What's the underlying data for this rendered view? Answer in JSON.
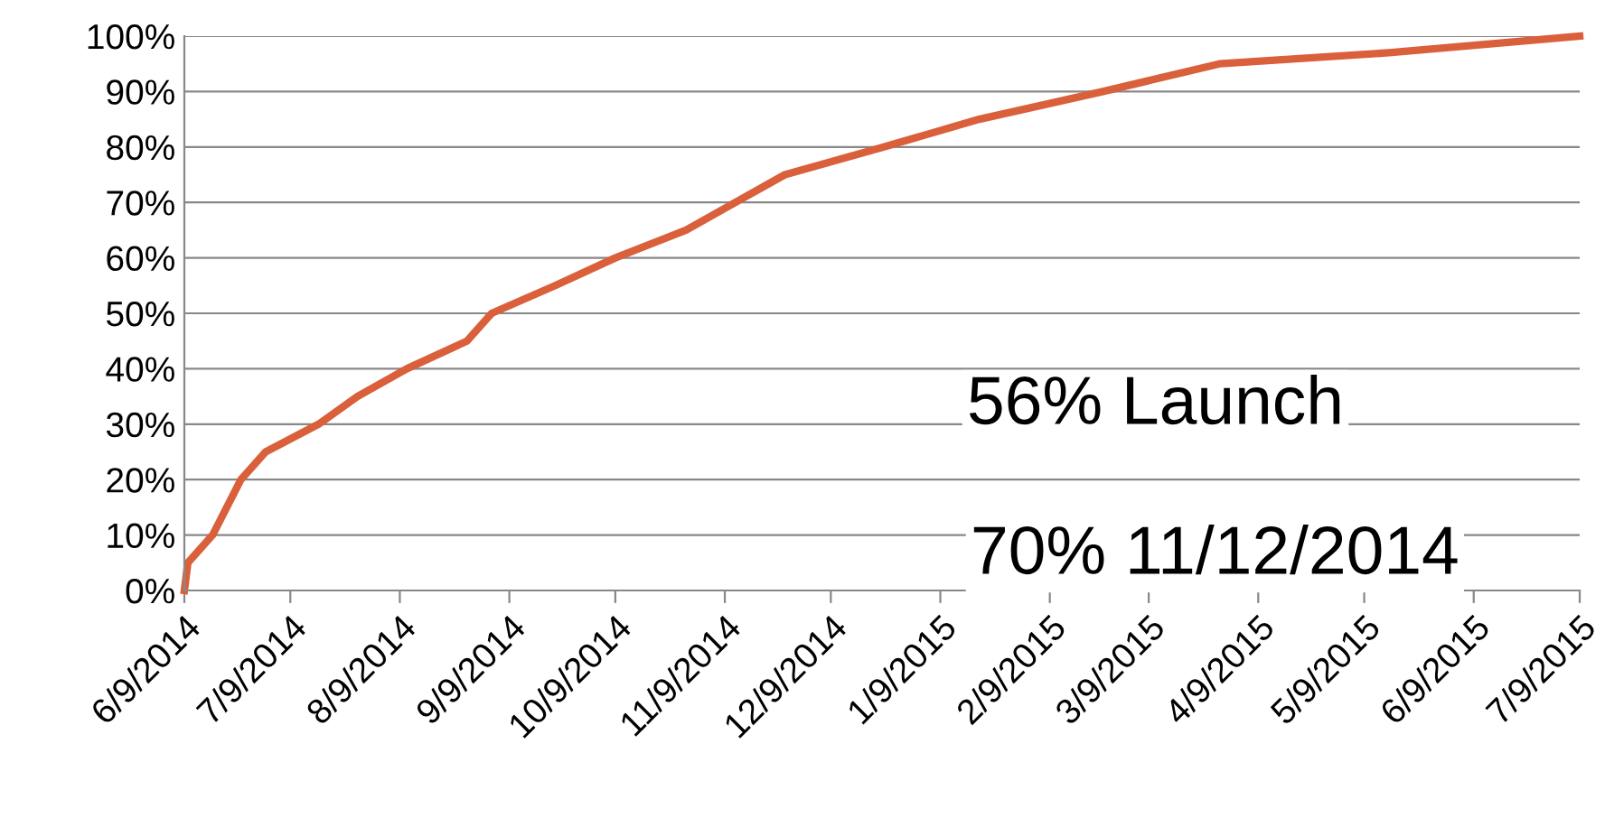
{
  "chart_data": {
    "type": "line",
    "x": [
      "2014-06-09",
      "2014-06-10",
      "2014-06-17",
      "2014-06-25",
      "2014-07-02",
      "2014-07-17",
      "2014-07-28",
      "2014-08-11",
      "2014-08-28",
      "2014-09-04",
      "2014-09-22",
      "2014-10-09",
      "2014-10-29",
      "2014-11-12",
      "2014-11-26",
      "2014-12-24",
      "2015-01-20",
      "2015-02-24",
      "2015-03-29",
      "2015-05-16",
      "2015-07-09"
    ],
    "series": [
      {
        "color": "#d9603b",
        "values": [
          0,
          5,
          10,
          20,
          25,
          30,
          35,
          40,
          45,
          50,
          55,
          60,
          65,
          70,
          75,
          80,
          85,
          90,
          95,
          97,
          100
        ]
      }
    ],
    "xlim": [
      "2014-06-09",
      "2015-07-09"
    ],
    "xticks": [
      {
        "value": "2014-06-09",
        "label": "6/9/2014"
      },
      {
        "value": "2014-07-09",
        "label": "7/9/2014"
      },
      {
        "value": "2014-08-09",
        "label": "8/9/2014"
      },
      {
        "value": "2014-09-09",
        "label": "9/9/2014"
      },
      {
        "value": "2014-10-09",
        "label": "10/9/2014"
      },
      {
        "value": "2014-11-09",
        "label": "11/9/2014"
      },
      {
        "value": "2014-12-09",
        "label": "12/9/2014"
      },
      {
        "value": "2015-01-09",
        "label": "1/9/2015"
      },
      {
        "value": "2015-02-09",
        "label": "2/9/2015"
      },
      {
        "value": "2015-03-09",
        "label": "3/9/2015"
      },
      {
        "value": "2015-04-09",
        "label": "4/9/2015"
      },
      {
        "value": "2015-05-09",
        "label": "5/9/2015"
      },
      {
        "value": "2015-06-09",
        "label": "6/9/2015"
      },
      {
        "value": "2015-07-09",
        "label": "7/9/2015"
      }
    ],
    "ylim": [
      0,
      100
    ],
    "yticks": [
      {
        "value": 0,
        "label": "0%"
      },
      {
        "value": 10,
        "label": "10%"
      },
      {
        "value": 20,
        "label": "20%"
      },
      {
        "value": 30,
        "label": "30%"
      },
      {
        "value": 40,
        "label": "40%"
      },
      {
        "value": 50,
        "label": "50%"
      },
      {
        "value": 60,
        "label": "60%"
      },
      {
        "value": 70,
        "label": "70%"
      },
      {
        "value": 80,
        "label": "80%"
      },
      {
        "value": 90,
        "label": "90%"
      },
      {
        "value": 100,
        "label": "100%"
      }
    ],
    "grid": "y",
    "marker": "none",
    "line_style": "solid",
    "annotations": [
      "56% Launch",
      "70% 11/12/2014"
    ]
  }
}
